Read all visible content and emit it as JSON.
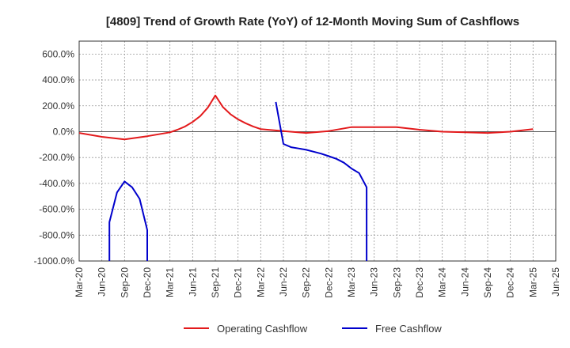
{
  "chart_data": {
    "type": "line",
    "title": "[4809]  Trend of Growth Rate (YoY) of 12-Month Moving Sum of Cashflows",
    "xlabel": "",
    "ylabel": "",
    "ylim": [
      -1000,
      700
    ],
    "y_ticks": [
      600,
      400,
      200,
      0,
      -200,
      -400,
      -600,
      -800,
      -1000
    ],
    "y_tick_labels": [
      "600.0%",
      "400.0%",
      "200.0%",
      "0.0%",
      "-200.0%",
      "-400.0%",
      "-600.0%",
      "-800.0%",
      "-1000.0%"
    ],
    "x_range": [
      "2020-03",
      "2025-06"
    ],
    "x_tick_labels": [
      "Mar-20",
      "Jun-20",
      "Sep-20",
      "Dec-20",
      "Mar-21",
      "Jun-21",
      "Sep-21",
      "Dec-21",
      "Mar-22",
      "Jun-22",
      "Sep-22",
      "Dec-22",
      "Mar-23",
      "Jun-23",
      "Sep-23",
      "Dec-23",
      "Mar-24",
      "Jun-24",
      "Sep-24",
      "Dec-24",
      "Mar-25",
      "Jun-25"
    ],
    "grid": true,
    "legend_position": "bottom",
    "series": [
      {
        "name": "Operating Cashflow",
        "color": "#e31a1c",
        "points": [
          [
            "2020-03",
            -10
          ],
          [
            "2020-06",
            -40
          ],
          [
            "2020-09",
            -60
          ],
          [
            "2020-12",
            -35
          ],
          [
            "2021-03",
            -5
          ],
          [
            "2021-04",
            15
          ],
          [
            "2021-05",
            40
          ],
          [
            "2021-06",
            75
          ],
          [
            "2021-07",
            120
          ],
          [
            "2021-08",
            185
          ],
          [
            "2021-09",
            280
          ],
          [
            "2021-10",
            190
          ],
          [
            "2021-11",
            135
          ],
          [
            "2021-12",
            95
          ],
          [
            "2022-01",
            65
          ],
          [
            "2022-02",
            40
          ],
          [
            "2022-03",
            20
          ],
          [
            "2022-06",
            5
          ],
          [
            "2022-09",
            -10
          ],
          [
            "2022-12",
            5
          ],
          [
            "2023-03",
            35
          ],
          [
            "2023-06",
            35
          ],
          [
            "2023-09",
            35
          ],
          [
            "2023-12",
            15
          ],
          [
            "2024-03",
            0
          ],
          [
            "2024-06",
            -5
          ],
          [
            "2024-09",
            -10
          ],
          [
            "2024-12",
            0
          ],
          [
            "2025-03",
            20
          ]
        ]
      },
      {
        "name": "Free Cashflow",
        "color": "#0000cc",
        "segments": [
          [
            [
              "2020-07",
              -1000
            ],
            [
              "2020-07",
              -700
            ],
            [
              "2020-08",
              -470
            ],
            [
              "2020-09",
              -385
            ],
            [
              "2020-10",
              -430
            ],
            [
              "2020-11",
              -520
            ],
            [
              "2020-12",
              -760
            ],
            [
              "2020-12",
              -1000
            ]
          ],
          [
            [
              "2022-05",
              230
            ],
            [
              "2022-06",
              -95
            ],
            [
              "2022-07",
              -120
            ],
            [
              "2022-08",
              -130
            ],
            [
              "2022-09",
              -140
            ],
            [
              "2022-10",
              -155
            ],
            [
              "2022-11",
              -170
            ],
            [
              "2022-12",
              -190
            ],
            [
              "2023-01",
              -210
            ],
            [
              "2023-02",
              -240
            ],
            [
              "2023-03",
              -285
            ],
            [
              "2023-04",
              -320
            ],
            [
              "2023-05",
              -430
            ],
            [
              "2023-05",
              -1000
            ]
          ]
        ]
      }
    ]
  }
}
